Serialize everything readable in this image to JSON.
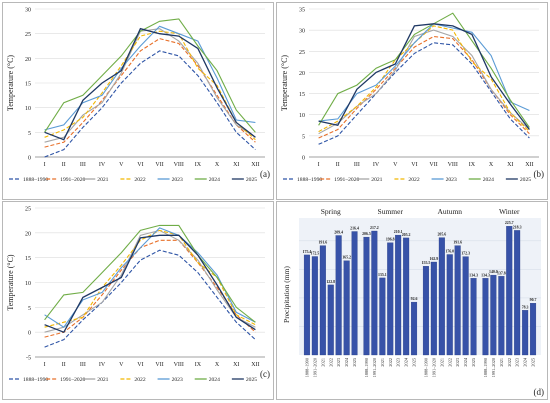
{
  "months": [
    "I",
    "II",
    "III",
    "IV",
    "V",
    "VI",
    "VII",
    "VIII",
    "IX",
    "X",
    "XI",
    "XII"
  ],
  "temperature_ylabel": "Temperature (°C)",
  "legend": [
    {
      "name": "1888–1990",
      "color": "#2f55a6",
      "dash": "4,2"
    },
    {
      "name": "1991–2020",
      "color": "#e8702a",
      "dash": "4,2"
    },
    {
      "name": "2021",
      "color": "#a6a6a6",
      "dash": ""
    },
    {
      "name": "2022",
      "color": "#f2b600",
      "dash": "4,2"
    },
    {
      "name": "2023",
      "color": "#5b9bd5",
      "dash": ""
    },
    {
      "name": "2024",
      "color": "#70ad47",
      "dash": ""
    },
    {
      "name": "2025",
      "color": "#1f3864",
      "dash": ""
    }
  ],
  "chart_data": [
    {
      "type": "line",
      "panel": "(a)",
      "ylabel": "Temperature (°C)",
      "ylim": [
        0,
        30
      ],
      "categories": [
        "I",
        "II",
        "III",
        "IV",
        "V",
        "VI",
        "VII",
        "VIII",
        "IX",
        "X",
        "XI",
        "XII"
      ],
      "series": [
        {
          "name": "1888–1990",
          "values": [
            0,
            1.5,
            6,
            10,
            15,
            19,
            21.5,
            20.5,
            16.5,
            11,
            5,
            1.5
          ]
        },
        {
          "name": "1991–2020",
          "values": [
            2,
            3,
            7,
            11.5,
            16.5,
            21.5,
            24,
            23,
            18.5,
            12.5,
            6.5,
            3
          ]
        },
        {
          "name": "2021",
          "values": [
            3,
            4,
            8.5,
            11,
            17,
            25.5,
            26,
            23.5,
            19,
            12,
            6.5,
            4
          ]
        },
        {
          "name": "2022",
          "values": [
            4,
            5.5,
            8,
            13,
            18.5,
            24.5,
            25.5,
            25,
            18,
            14.5,
            7,
            3.5
          ]
        },
        {
          "name": "2023",
          "values": [
            5.5,
            6.5,
            11,
            12.5,
            18,
            22.5,
            26.5,
            25,
            23.5,
            16,
            7.5,
            7
          ]
        },
        {
          "name": "2024",
          "values": [
            5,
            11,
            12.5,
            16.5,
            20.5,
            25.5,
            27.5,
            28,
            22.5,
            17.5,
            9.5,
            5
          ]
        },
        {
          "name": "2025",
          "values": [
            5,
            3.5,
            11.5,
            15,
            17.5,
            26,
            25,
            24.5,
            22,
            14,
            7,
            4
          ]
        }
      ]
    },
    {
      "type": "line",
      "panel": "(b)",
      "ylabel": "Temperature (°C)",
      "ylim": [
        0,
        35
      ],
      "categories": [
        "I",
        "II",
        "III",
        "IV",
        "V",
        "VI",
        "VII",
        "VIII",
        "IX",
        "X",
        "XI",
        "XII"
      ],
      "series": [
        {
          "name": "1888–1990",
          "values": [
            3,
            5,
            10,
            15,
            20,
            24.5,
            27,
            26.5,
            22,
            15.5,
            9,
            4.5
          ]
        },
        {
          "name": "1991–2020",
          "values": [
            4.5,
            6.5,
            11.5,
            16,
            21,
            26,
            28.5,
            28,
            23,
            16,
            10,
            5.5
          ]
        },
        {
          "name": "2021",
          "values": [
            5.5,
            8,
            12,
            15,
            20.5,
            28.5,
            30,
            28.5,
            24,
            16,
            10.5,
            6.5
          ]
        },
        {
          "name": "2022",
          "values": [
            6,
            8.5,
            12,
            16.5,
            23,
            27,
            31,
            30,
            22.5,
            18.5,
            10.5,
            6
          ]
        },
        {
          "name": "2023",
          "values": [
            8.5,
            9,
            15,
            17,
            21.5,
            27,
            31.5,
            30.5,
            29.5,
            24,
            13,
            11
          ]
        },
        {
          "name": "2024",
          "values": [
            7.5,
            15,
            17,
            21,
            23,
            29,
            31.5,
            34,
            27.5,
            21,
            13.5,
            7
          ]
        },
        {
          "name": "2025",
          "values": [
            8.5,
            7.5,
            16,
            20,
            22,
            31,
            31.5,
            31,
            29,
            19,
            12.5,
            6.5
          ]
        }
      ]
    },
    {
      "type": "line",
      "panel": "(c)",
      "ylabel": "Temperature (°C)",
      "ylim": [
        -5,
        25
      ],
      "categories": [
        "I",
        "II",
        "III",
        "IV",
        "V",
        "VI",
        "VII",
        "VIII",
        "IX",
        "X",
        "XI",
        "XII"
      ],
      "series": [
        {
          "name": "1888–1990",
          "values": [
            -3,
            -1.5,
            2.5,
            6,
            10,
            14.5,
            16.5,
            15.5,
            12,
            7,
            2,
            -1.5
          ]
        },
        {
          "name": "1991–2020",
          "values": [
            -1,
            0,
            3,
            7.5,
            12.5,
            17,
            18.5,
            18.5,
            14,
            9,
            3.5,
            0
          ]
        },
        {
          "name": "2021",
          "values": [
            0,
            1,
            3.5,
            6,
            11.5,
            19.5,
            20.5,
            18.5,
            14.5,
            8.5,
            3,
            1
          ]
        },
        {
          "name": "2022",
          "values": [
            1,
            2,
            3,
            9,
            13.5,
            18.5,
            20.5,
            19.5,
            14,
            11,
            3.5,
            1.5
          ]
        },
        {
          "name": "2023",
          "values": [
            3.5,
            1,
            6.5,
            8,
            13,
            17,
            21,
            19.5,
            16,
            11.5,
            4,
            2
          ]
        },
        {
          "name": "2024",
          "values": [
            2.5,
            7.5,
            8,
            12,
            16,
            20.5,
            21.5,
            21.5,
            15.5,
            11,
            5,
            2
          ]
        },
        {
          "name": "2025",
          "values": [
            1.5,
            0,
            7,
            9,
            11,
            19,
            19.5,
            19.5,
            15.5,
            9.5,
            3,
            0.5
          ]
        }
      ]
    },
    {
      "type": "bar",
      "panel": "(d)",
      "ylabel": "Precipitation  (mm)",
      "groups": [
        "Spring",
        "Summer",
        "Autumn",
        "Winter"
      ],
      "categories": [
        "1888–1990",
        "1991–2020",
        "2021",
        "2022",
        "2023",
        "2024",
        "2025"
      ],
      "series": [
        {
          "group": "Spring",
          "values": [
            175.4,
            172.5,
            191.6,
            122.8,
            209.4,
            165.2,
            216.4
          ]
        },
        {
          "group": "Summer",
          "values": [
            206.5,
            217.2,
            135.1,
            196.8,
            210.1,
            205.2,
            92.6
          ]
        },
        {
          "group": "Autumn",
          "values": [
            155.5,
            162.9,
            205.6,
            176.0,
            191.6,
            172.3,
            134.3
          ]
        },
        {
          "group": "Winter",
          "values": [
            134.3,
            140.0,
            137.8,
            225.7,
            218.3,
            78.3,
            90.7
          ]
        }
      ],
      "value_labels": [
        [
          "175.4",
          "172.5",
          "191.6",
          "122.8",
          "209.4",
          "165.2",
          "216.4"
        ],
        [
          "206.5",
          "217.2",
          "135.1",
          "196.8",
          "210.1",
          "205.2",
          "92.6"
        ],
        [
          "155.5",
          "162.9",
          "205.6",
          "176.0",
          "191.6",
          "172.3",
          "134.3"
        ],
        [
          "134.3",
          "140.0",
          "137.8",
          "225.7",
          "218.3",
          "78.3",
          "90.7"
        ]
      ],
      "ylim": [
        0,
        240
      ]
    }
  ]
}
